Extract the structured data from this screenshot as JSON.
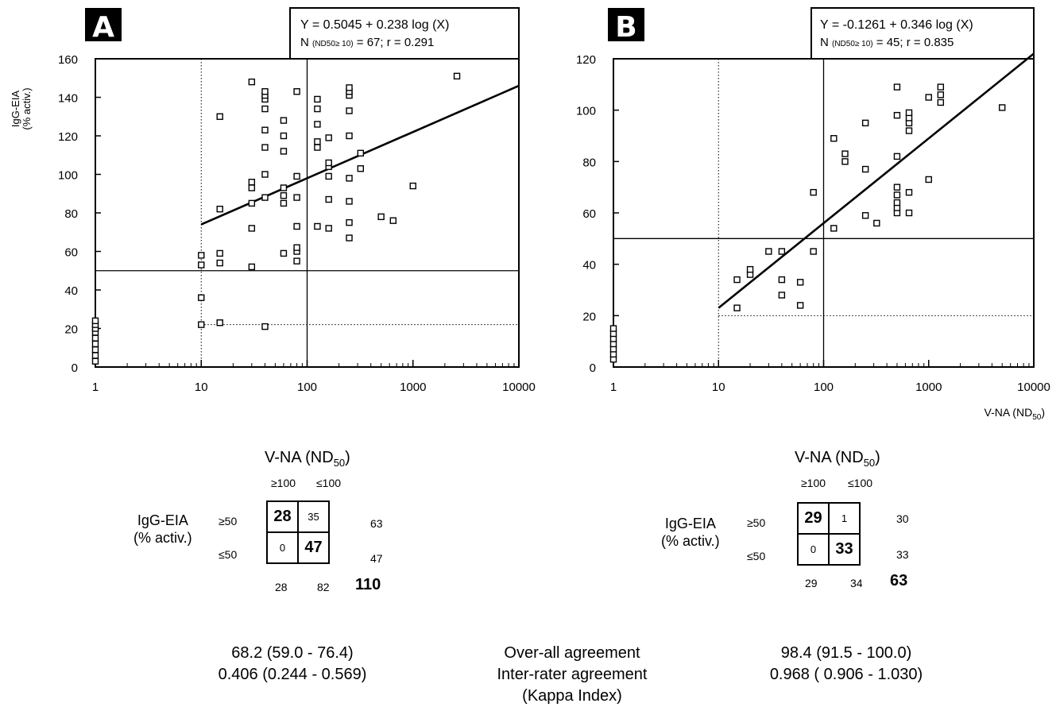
{
  "chart_data": [
    {
      "type": "scatter",
      "panel_label": "A",
      "xscale": "log",
      "xlim": [
        1,
        10000
      ],
      "ylim": [
        0,
        160
      ],
      "ylabel": "IgG-EIA",
      "ylabel2": "(% activ.)",
      "xlabel": "",
      "xticks": [
        "1",
        "10",
        "100",
        "1000",
        "10000"
      ],
      "yticks": [
        "0",
        "20",
        "40",
        "60",
        "80",
        "100",
        "120",
        "140",
        "160"
      ],
      "equation": "Y = 0.5045 + 0.238 log (X)",
      "stats": {
        "n_pre": "N ",
        "n_sub": "(ND50≥ 10)",
        "n_post": " = 67; r = 0.291"
      },
      "cutoff_lines": {
        "x_dotted": 10,
        "x_solid": 100,
        "y_solid": 50,
        "y_dotted": 22
      },
      "regression": {
        "x": [
          10,
          10000
        ],
        "y": [
          74,
          146
        ]
      },
      "points": [
        [
          1,
          3
        ],
        [
          1,
          6
        ],
        [
          1,
          9
        ],
        [
          1,
          12
        ],
        [
          1,
          15
        ],
        [
          1,
          18
        ],
        [
          1,
          20
        ],
        [
          1,
          22
        ],
        [
          1,
          24
        ],
        [
          10,
          22
        ],
        [
          10,
          36
        ],
        [
          10,
          53
        ],
        [
          10,
          58
        ],
        [
          15,
          23
        ],
        [
          15,
          54
        ],
        [
          15,
          59
        ],
        [
          15,
          82
        ],
        [
          15,
          130
        ],
        [
          30,
          52
        ],
        [
          30,
          72
        ],
        [
          30,
          85
        ],
        [
          30,
          93
        ],
        [
          30,
          96
        ],
        [
          30,
          148
        ],
        [
          40,
          21
        ],
        [
          40,
          88
        ],
        [
          40,
          100
        ],
        [
          40,
          114
        ],
        [
          40,
          123
        ],
        [
          40,
          134
        ],
        [
          40,
          139
        ],
        [
          40,
          141
        ],
        [
          40,
          143
        ],
        [
          60,
          59
        ],
        [
          60,
          85
        ],
        [
          60,
          89
        ],
        [
          60,
          93
        ],
        [
          60,
          112
        ],
        [
          60,
          120
        ],
        [
          60,
          128
        ],
        [
          80,
          55
        ],
        [
          80,
          60
        ],
        [
          80,
          62
        ],
        [
          80,
          73
        ],
        [
          80,
          88
        ],
        [
          80,
          99
        ],
        [
          80,
          143
        ],
        [
          125,
          73
        ],
        [
          125,
          114
        ],
        [
          125,
          117
        ],
        [
          125,
          126
        ],
        [
          125,
          134
        ],
        [
          125,
          139
        ],
        [
          160,
          72
        ],
        [
          160,
          87
        ],
        [
          160,
          99
        ],
        [
          160,
          104
        ],
        [
          160,
          106
        ],
        [
          160,
          119
        ],
        [
          250,
          67
        ],
        [
          250,
          75
        ],
        [
          250,
          86
        ],
        [
          250,
          98
        ],
        [
          250,
          120
        ],
        [
          250,
          133
        ],
        [
          250,
          141
        ],
        [
          250,
          143
        ],
        [
          250,
          145
        ],
        [
          320,
          103
        ],
        [
          320,
          111
        ],
        [
          500,
          78
        ],
        [
          650,
          76
        ],
        [
          1000,
          94
        ],
        [
          2600,
          151
        ]
      ]
    },
    {
      "type": "scatter",
      "panel_label": "B",
      "xscale": "log",
      "xlim": [
        1,
        10000
      ],
      "ylim": [
        0,
        120
      ],
      "xlabel": "V-NA (ND",
      "xlabel_sub": "50",
      "xlabel_post": ")",
      "xticks": [
        "1",
        "10",
        "100",
        "1000",
        "10000"
      ],
      "yticks": [
        "0",
        "20",
        "40",
        "60",
        "80",
        "100",
        "120"
      ],
      "equation": "Y = -0.1261 + 0.346 log (X)",
      "stats": {
        "n_pre": "N ",
        "n_sub": "(ND50≥ 10)",
        "n_post": " = 45; r = 0.835"
      },
      "cutoff_lines": {
        "x_dotted": 10,
        "x_solid": 100,
        "y_solid": 50,
        "y_dotted": 20
      },
      "regression": {
        "x": [
          10,
          10000
        ],
        "y": [
          23,
          122
        ]
      },
      "points": [
        [
          1,
          3
        ],
        [
          1,
          5
        ],
        [
          1,
          7
        ],
        [
          1,
          9
        ],
        [
          1,
          11
        ],
        [
          1,
          13
        ],
        [
          1,
          15
        ],
        [
          15,
          23
        ],
        [
          15,
          34
        ],
        [
          20,
          36
        ],
        [
          20,
          38
        ],
        [
          30,
          45
        ],
        [
          40,
          28
        ],
        [
          40,
          34
        ],
        [
          40,
          45
        ],
        [
          60,
          24
        ],
        [
          60,
          33
        ],
        [
          80,
          45
        ],
        [
          80,
          68
        ],
        [
          125,
          54
        ],
        [
          125,
          89
        ],
        [
          160,
          80
        ],
        [
          160,
          83
        ],
        [
          250,
          59
        ],
        [
          250,
          77
        ],
        [
          250,
          95
        ],
        [
          320,
          56
        ],
        [
          500,
          60
        ],
        [
          500,
          62
        ],
        [
          500,
          64
        ],
        [
          500,
          67
        ],
        [
          500,
          70
        ],
        [
          500,
          82
        ],
        [
          500,
          98
        ],
        [
          500,
          109
        ],
        [
          650,
          60
        ],
        [
          650,
          68
        ],
        [
          650,
          92
        ],
        [
          650,
          95
        ],
        [
          650,
          97
        ],
        [
          650,
          99
        ],
        [
          1000,
          73
        ],
        [
          1000,
          105
        ],
        [
          1300,
          103
        ],
        [
          1300,
          106
        ],
        [
          1300,
          109
        ],
        [
          5000,
          101
        ]
      ]
    }
  ],
  "tables": [
    {
      "title": "V-NA (ND",
      "title_sub": "50",
      "title_post": ")",
      "col_headers": [
        "≥100",
        "≤100"
      ],
      "row_label": "IgG-EIA",
      "row_label2": "(% activ.)",
      "row_headers": [
        "≥50",
        "≤50"
      ],
      "cells": [
        [
          "28",
          "35"
        ],
        [
          "0",
          "47"
        ]
      ],
      "row_totals": [
        "63",
        "47"
      ],
      "col_totals": [
        "28",
        "82"
      ],
      "grand_total": "110"
    },
    {
      "title": "V-NA (ND",
      "title_sub": "50",
      "title_post": ")",
      "col_headers": [
        "≥100",
        "≤100"
      ],
      "row_label": "IgG-EIA",
      "row_label2": "(% activ.)",
      "row_headers": [
        "≥50",
        "≤50"
      ],
      "cells": [
        [
          "29",
          "1"
        ],
        [
          "0",
          "33"
        ]
      ],
      "row_totals": [
        "30",
        "33"
      ],
      "col_totals": [
        "29",
        "34"
      ],
      "grand_total": "63"
    }
  ],
  "footer": {
    "left_overall": "68.2 (59.0 - 76.4)",
    "left_kappa": "0.406 (0.244 - 0.569)",
    "mid_overall": "Over-all agreement",
    "mid_kappa": "Inter-rater agreement",
    "mid_kappa2": "(Kappa Index)",
    "right_overall": "98.4 (91.5 - 100.0)",
    "right_kappa": "0.968 ( 0.906 - 1.030)"
  }
}
